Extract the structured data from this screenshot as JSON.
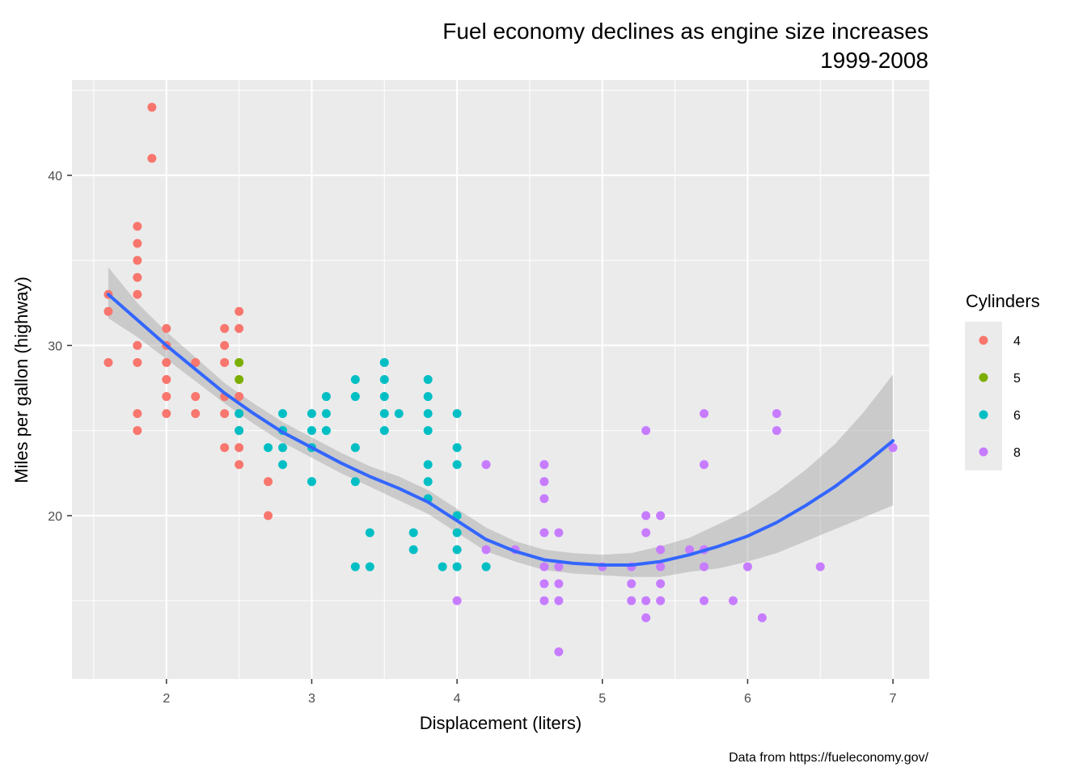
{
  "chart_data": {
    "type": "scatter",
    "title": "Fuel economy declines as engine size increases",
    "subtitle": "1999-2008",
    "xlabel": "Displacement (liters)",
    "ylabel": "Miles per gallon (highway)",
    "caption": "Data from https://fueleconomy.gov/",
    "xlim": [
      1.35,
      7.25
    ],
    "ylim": [
      10.4,
      45.6
    ],
    "x_ticks": [
      2,
      3,
      4,
      5,
      6,
      7
    ],
    "y_ticks": [
      20,
      30,
      40
    ],
    "grid": true,
    "legend": {
      "title": "Cylinders",
      "position": "right",
      "entries": [
        {
          "label": "4",
          "color": "#F8766D"
        },
        {
          "label": "5",
          "color": "#7CAE00"
        },
        {
          "label": "6",
          "color": "#00BFC4"
        },
        {
          "label": "8",
          "color": "#C77CFF"
        }
      ]
    },
    "colors": {
      "panel_background": "#EBEBEB",
      "grid": "#FFFFFF",
      "smooth_line": "#3366FF",
      "confidence_band": "#999999"
    },
    "series": [
      {
        "name": "4",
        "color": "#F8766D",
        "points": [
          [
            1.6,
            33
          ],
          [
            1.6,
            32
          ],
          [
            1.6,
            29
          ],
          [
            1.8,
            37
          ],
          [
            1.8,
            36
          ],
          [
            1.8,
            35
          ],
          [
            1.8,
            34
          ],
          [
            1.8,
            33
          ],
          [
            1.8,
            30
          ],
          [
            1.8,
            29
          ],
          [
            1.8,
            26
          ],
          [
            1.8,
            25
          ],
          [
            1.9,
            44
          ],
          [
            1.9,
            41
          ],
          [
            2.0,
            31
          ],
          [
            2.0,
            30
          ],
          [
            2.0,
            29
          ],
          [
            2.0,
            28
          ],
          [
            2.0,
            27
          ],
          [
            2.0,
            26
          ],
          [
            2.2,
            29
          ],
          [
            2.2,
            27
          ],
          [
            2.2,
            26
          ],
          [
            2.4,
            31
          ],
          [
            2.4,
            30
          ],
          [
            2.4,
            29
          ],
          [
            2.4,
            27
          ],
          [
            2.4,
            26
          ],
          [
            2.4,
            24
          ],
          [
            2.5,
            32
          ],
          [
            2.5,
            31
          ],
          [
            2.5,
            27
          ],
          [
            2.5,
            26
          ],
          [
            2.5,
            25
          ],
          [
            2.5,
            24
          ],
          [
            2.5,
            23
          ],
          [
            2.7,
            22
          ],
          [
            2.7,
            20
          ]
        ]
      },
      {
        "name": "5",
        "color": "#7CAE00",
        "points": [
          [
            2.5,
            29
          ],
          [
            2.5,
            28
          ]
        ]
      },
      {
        "name": "6",
        "color": "#00BFC4",
        "points": [
          [
            2.5,
            26
          ],
          [
            2.5,
            25
          ],
          [
            2.7,
            24
          ],
          [
            2.8,
            26
          ],
          [
            2.8,
            25
          ],
          [
            2.8,
            24
          ],
          [
            2.8,
            23
          ],
          [
            3.0,
            26
          ],
          [
            3.0,
            25
          ],
          [
            3.0,
            24
          ],
          [
            3.0,
            22
          ],
          [
            3.1,
            27
          ],
          [
            3.1,
            26
          ],
          [
            3.1,
            25
          ],
          [
            3.3,
            28
          ],
          [
            3.3,
            27
          ],
          [
            3.3,
            24
          ],
          [
            3.3,
            22
          ],
          [
            3.3,
            17
          ],
          [
            3.4,
            19
          ],
          [
            3.4,
            17
          ],
          [
            3.5,
            29
          ],
          [
            3.5,
            28
          ],
          [
            3.5,
            27
          ],
          [
            3.5,
            26
          ],
          [
            3.5,
            25
          ],
          [
            3.6,
            26
          ],
          [
            3.7,
            19
          ],
          [
            3.7,
            18
          ],
          [
            3.8,
            28
          ],
          [
            3.8,
            27
          ],
          [
            3.8,
            26
          ],
          [
            3.8,
            25
          ],
          [
            3.8,
            23
          ],
          [
            3.8,
            22
          ],
          [
            3.8,
            21
          ],
          [
            3.9,
            17
          ],
          [
            4.0,
            26
          ],
          [
            4.0,
            24
          ],
          [
            4.0,
            23
          ],
          [
            4.0,
            20
          ],
          [
            4.0,
            19
          ],
          [
            4.0,
            18
          ],
          [
            4.0,
            17
          ],
          [
            4.2,
            17
          ]
        ]
      },
      {
        "name": "8",
        "color": "#C77CFF",
        "points": [
          [
            4.0,
            15
          ],
          [
            4.2,
            23
          ],
          [
            4.2,
            18
          ],
          [
            4.4,
            18
          ],
          [
            4.6,
            23
          ],
          [
            4.6,
            22
          ],
          [
            4.6,
            21
          ],
          [
            4.6,
            19
          ],
          [
            4.6,
            17
          ],
          [
            4.6,
            16
          ],
          [
            4.6,
            15
          ],
          [
            4.7,
            19
          ],
          [
            4.7,
            17
          ],
          [
            4.7,
            16
          ],
          [
            4.7,
            15
          ],
          [
            4.7,
            12
          ],
          [
            5.0,
            17
          ],
          [
            5.2,
            17
          ],
          [
            5.2,
            16
          ],
          [
            5.2,
            15
          ],
          [
            5.3,
            25
          ],
          [
            5.3,
            20
          ],
          [
            5.3,
            19
          ],
          [
            5.3,
            15
          ],
          [
            5.3,
            14
          ],
          [
            5.4,
            20
          ],
          [
            5.4,
            18
          ],
          [
            5.4,
            17
          ],
          [
            5.4,
            16
          ],
          [
            5.4,
            15
          ],
          [
            5.6,
            18
          ],
          [
            5.7,
            26
          ],
          [
            5.7,
            23
          ],
          [
            5.7,
            18
          ],
          [
            5.7,
            17
          ],
          [
            5.7,
            15
          ],
          [
            5.9,
            15
          ],
          [
            6.0,
            17
          ],
          [
            6.1,
            14
          ],
          [
            6.2,
            26
          ],
          [
            6.2,
            25
          ],
          [
            6.5,
            17
          ],
          [
            7.0,
            24
          ]
        ]
      }
    ],
    "smooth": {
      "x": [
        1.6,
        1.8,
        2.0,
        2.2,
        2.4,
        2.6,
        2.8,
        3.0,
        3.2,
        3.4,
        3.6,
        3.8,
        4.0,
        4.2,
        4.4,
        4.6,
        4.8,
        5.0,
        5.2,
        5.4,
        5.6,
        5.8,
        6.0,
        6.2,
        6.4,
        6.6,
        6.8,
        7.0
      ],
      "y": [
        33.0,
        31.5,
        30.0,
        28.6,
        27.2,
        26.0,
        24.9,
        24.0,
        23.1,
        22.3,
        21.6,
        20.8,
        19.7,
        18.6,
        17.9,
        17.4,
        17.2,
        17.1,
        17.1,
        17.3,
        17.7,
        18.2,
        18.8,
        19.6,
        20.6,
        21.7,
        23.0,
        24.4
      ],
      "lo": [
        31.6,
        30.5,
        29.2,
        27.9,
        26.6,
        25.4,
        24.3,
        23.4,
        22.5,
        21.7,
        20.9,
        20.1,
        19.0,
        17.9,
        17.3,
        16.8,
        16.6,
        16.5,
        16.4,
        16.4,
        16.7,
        16.9,
        17.3,
        17.8,
        18.5,
        19.2,
        19.9,
        20.6
      ],
      "hi": [
        34.6,
        32.5,
        30.8,
        29.3,
        27.8,
        26.6,
        25.5,
        24.6,
        23.7,
        22.9,
        22.3,
        21.5,
        20.4,
        19.3,
        18.5,
        18.0,
        17.8,
        17.7,
        17.8,
        18.2,
        18.7,
        19.5,
        20.3,
        21.4,
        22.7,
        24.2,
        26.1,
        28.3
      ]
    }
  }
}
